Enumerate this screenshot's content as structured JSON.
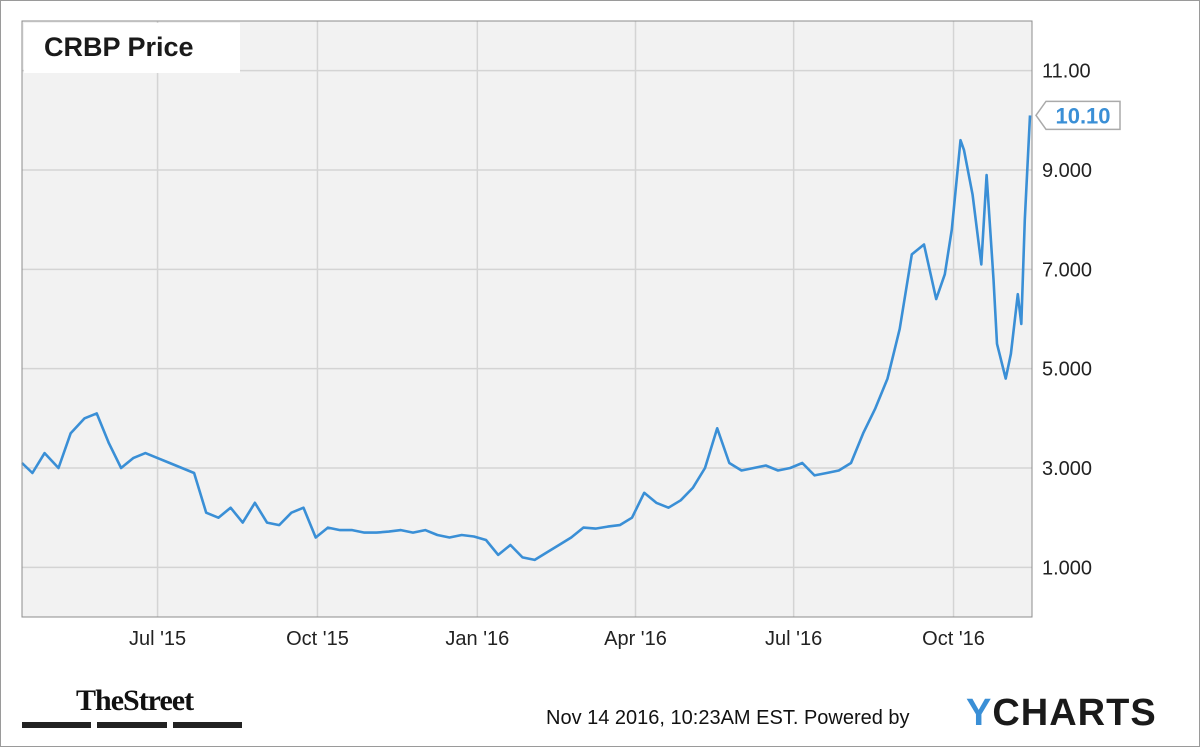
{
  "chart_data": {
    "type": "line",
    "title": "CRBP Price",
    "x_ticks": [
      "Jul '15",
      "Oct '15",
      "Jan '16",
      "Apr '16",
      "Jul '16",
      "Oct '16"
    ],
    "y_ticks": [
      "1.000",
      "3.000",
      "5.000",
      "7.000",
      "9.000",
      "11.00"
    ],
    "ylim": [
      0,
      12
    ],
    "grid": true,
    "last_value_label": "10.10",
    "series": [
      {
        "color": "#3a8fd6",
        "x": [
          "2015-04-14",
          "2015-04-20",
          "2015-04-27",
          "2015-05-05",
          "2015-05-12",
          "2015-05-20",
          "2015-05-27",
          "2015-06-03",
          "2015-06-10",
          "2015-06-17",
          "2015-06-24",
          "2015-07-01",
          "2015-07-08",
          "2015-07-15",
          "2015-07-22",
          "2015-07-29",
          "2015-08-05",
          "2015-08-12",
          "2015-08-19",
          "2015-08-26",
          "2015-09-02",
          "2015-09-09",
          "2015-09-16",
          "2015-09-23",
          "2015-09-30",
          "2015-10-07",
          "2015-10-14",
          "2015-10-21",
          "2015-10-28",
          "2015-11-04",
          "2015-11-11",
          "2015-11-18",
          "2015-11-25",
          "2015-12-02",
          "2015-12-09",
          "2015-12-16",
          "2015-12-23",
          "2015-12-30",
          "2016-01-06",
          "2016-01-13",
          "2016-01-20",
          "2016-01-27",
          "2016-02-03",
          "2016-02-10",
          "2016-02-17",
          "2016-02-24",
          "2016-03-02",
          "2016-03-09",
          "2016-03-16",
          "2016-03-23",
          "2016-03-30",
          "2016-04-06",
          "2016-04-13",
          "2016-04-20",
          "2016-04-27",
          "2016-05-04",
          "2016-05-11",
          "2016-05-18",
          "2016-05-25",
          "2016-06-01",
          "2016-06-08",
          "2016-06-15",
          "2016-06-22",
          "2016-06-29",
          "2016-07-06",
          "2016-07-13",
          "2016-07-20",
          "2016-07-27",
          "2016-08-03",
          "2016-08-10",
          "2016-08-17",
          "2016-08-24",
          "2016-08-31",
          "2016-09-07",
          "2016-09-14",
          "2016-09-21",
          "2016-09-26",
          "2016-09-30",
          "2016-10-05",
          "2016-10-07",
          "2016-10-12",
          "2016-10-17",
          "2016-10-20",
          "2016-10-24",
          "2016-10-26",
          "2016-10-31",
          "2016-11-03",
          "2016-11-07",
          "2016-11-09",
          "2016-11-11",
          "2016-11-14"
        ],
        "values": [
          3.1,
          2.9,
          3.3,
          3.0,
          3.7,
          4.0,
          4.1,
          3.5,
          3.0,
          3.2,
          3.3,
          3.2,
          3.1,
          3.0,
          2.9,
          2.1,
          2.0,
          2.2,
          1.9,
          2.3,
          1.9,
          1.85,
          2.1,
          2.2,
          1.6,
          1.8,
          1.75,
          1.75,
          1.7,
          1.7,
          1.72,
          1.75,
          1.7,
          1.75,
          1.65,
          1.6,
          1.65,
          1.62,
          1.55,
          1.25,
          1.45,
          1.2,
          1.15,
          1.3,
          1.45,
          1.6,
          1.8,
          1.78,
          1.82,
          1.85,
          2.0,
          2.5,
          2.3,
          2.2,
          2.35,
          2.6,
          3.0,
          3.8,
          3.1,
          2.95,
          3.0,
          3.05,
          2.95,
          3.0,
          3.1,
          2.85,
          2.9,
          2.95,
          3.1,
          3.7,
          4.2,
          4.8,
          5.8,
          7.3,
          7.5,
          6.4,
          6.9,
          7.8,
          9.6,
          9.4,
          8.5,
          7.1,
          8.9,
          6.8,
          5.5,
          4.8,
          5.3,
          6.5,
          5.9,
          8.0,
          10.1
        ]
      }
    ]
  },
  "footer": {
    "timestamp": "Nov 14 2016, 10:23AM EST.",
    "powered_by": "Powered by",
    "brand": "YCHARTS",
    "publisher": "TheStreet"
  }
}
